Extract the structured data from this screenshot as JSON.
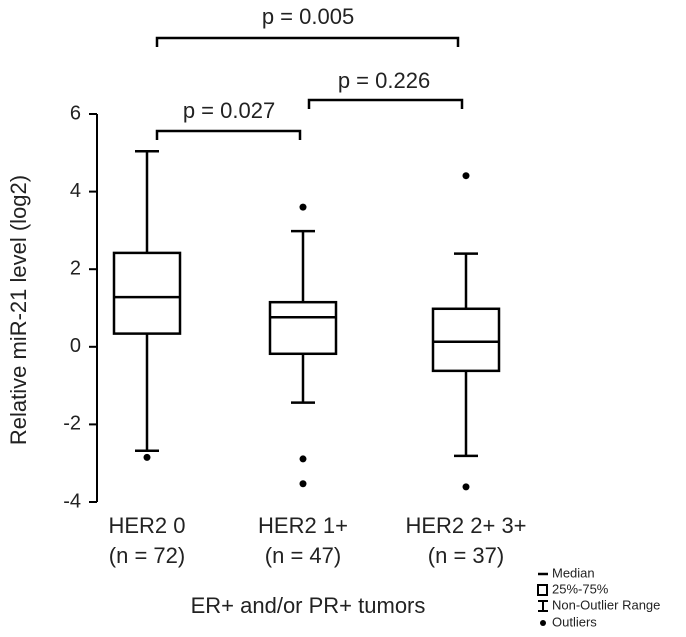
{
  "chart_data": {
    "type": "box",
    "y_label": "Relative miR-21 level (log2)",
    "x_label": "ER+ and/or PR+ tumors",
    "categories": [
      "HER2 0",
      "HER2 1+",
      "HER2 2+ 3+"
    ],
    "category_counts": [
      "(n = 72)",
      "(n = 47)",
      "(n = 37)"
    ],
    "color": "#000000",
    "ylim": [
      -4,
      6
    ],
    "yticks": [
      -4,
      -2,
      0,
      2,
      4,
      6
    ],
    "boxes": [
      {
        "whisker_low": -2.68,
        "q1": 0.34,
        "median": 1.28,
        "q3": 2.42,
        "whisker_high": 5.04,
        "outliers": [
          -2.85
        ]
      },
      {
        "whisker_low": -1.44,
        "q1": -0.18,
        "median": 0.76,
        "q3": 1.15,
        "whisker_high": 2.98,
        "outliers": [
          3.6,
          -2.89,
          -3.53
        ]
      },
      {
        "whisker_low": -2.81,
        "q1": -0.62,
        "median": 0.13,
        "q3": 0.98,
        "whisker_high": 2.4,
        "outliers": [
          4.41,
          -3.61
        ]
      }
    ],
    "annotations": [
      "p = 0.005",
      "p = 0.027",
      "p = 0.226"
    ],
    "legend": [
      "Median",
      "25%-75%",
      "Non-Outlier Range",
      "Outliers"
    ]
  }
}
